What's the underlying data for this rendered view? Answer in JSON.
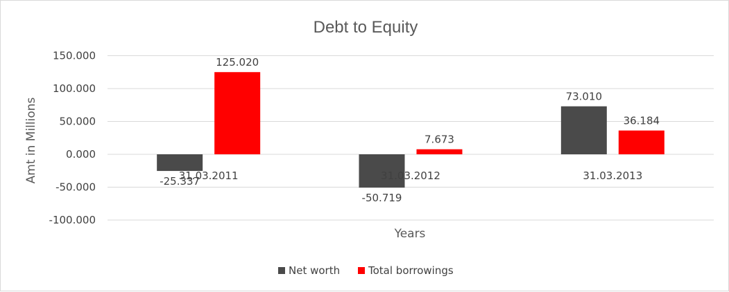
{
  "chart_data": {
    "type": "bar",
    "title": "Debt to Equity",
    "xlabel": "Years",
    "ylabel": "Amt in Millions",
    "categories": [
      "31.03.2011",
      "31.03.2012",
      "31.03.2013"
    ],
    "series": [
      {
        "name": "Net worth",
        "color": "#4a4a4a",
        "values": [
          -25.337,
          -50.719,
          73.01
        ],
        "labels": [
          "-25.337",
          "-50.719",
          "73.010"
        ]
      },
      {
        "name": "Total borrowings",
        "color": "#ff0000",
        "values": [
          125.02,
          7.673,
          36.184
        ],
        "labels": [
          "125.020",
          "7.673",
          "36.184"
        ]
      }
    ],
    "ylim": [
      -100,
      150
    ],
    "yticks": [
      150,
      100,
      50,
      0,
      -50,
      -100
    ],
    "ytick_labels": [
      "150.000",
      "100.000",
      "50.000",
      "0.000",
      "-50.000",
      "-100.000"
    ],
    "grid": true,
    "legend_position": "bottom"
  }
}
